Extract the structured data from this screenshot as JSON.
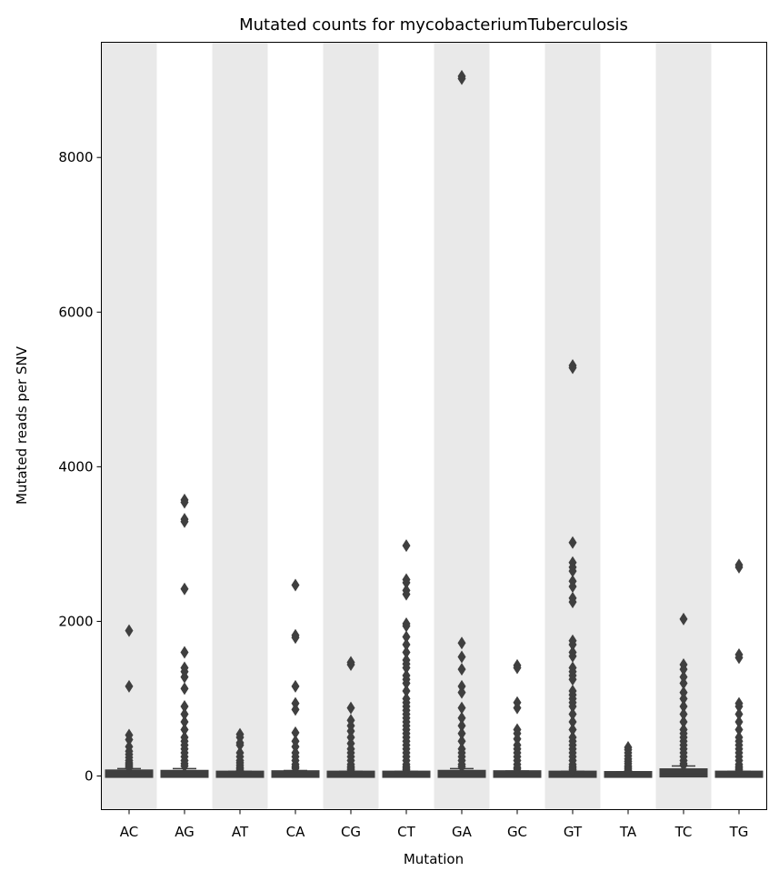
{
  "chart_data": {
    "type": "box",
    "title": "Mutated counts for mycobacteriumTuberculosis",
    "xlabel": "Mutation",
    "ylabel": "Mutated reads per SNV",
    "ylim": [
      -435,
      9490
    ],
    "yticks": [
      0,
      2000,
      4000,
      6000,
      8000
    ],
    "shaded_bands": "alternating grey background on every other category",
    "colors": {
      "box": "#3f3f3f",
      "band": "#e9e9e9"
    },
    "categories": [
      "AC",
      "AG",
      "AT",
      "CA",
      "CG",
      "CT",
      "GA",
      "GC",
      "GT",
      "TA",
      "TC",
      "TG"
    ],
    "series": [
      {
        "name": "AC",
        "q1": 5,
        "median": 20,
        "q3": 55,
        "whisker_low": 1,
        "whisker_high": 95,
        "outliers": [
          1880,
          1160,
          530,
          470,
          380,
          320,
          280,
          240,
          200,
          170,
          150,
          130,
          110
        ]
      },
      {
        "name": "AG",
        "q1": 5,
        "median": 20,
        "q3": 50,
        "whisker_low": 1,
        "whisker_high": 95,
        "outliers": [
          3570,
          3540,
          3320,
          3290,
          2420,
          1600,
          1400,
          1350,
          1280,
          1130,
          900,
          800,
          700,
          600,
          500,
          450,
          400,
          350,
          300,
          250,
          200,
          160,
          130
        ]
      },
      {
        "name": "AT",
        "q1": 5,
        "median": 15,
        "q3": 40,
        "whisker_low": 1,
        "whisker_high": 60,
        "outliers": [
          540,
          500,
          430,
          400,
          300,
          250,
          200,
          170,
          140,
          110,
          90,
          70
        ]
      },
      {
        "name": "CA",
        "q1": 5,
        "median": 15,
        "q3": 45,
        "whisker_low": 1,
        "whisker_high": 70,
        "outliers": [
          2470,
          1820,
          1790,
          1160,
          940,
          860,
          560,
          450,
          380,
          300,
          250,
          200,
          150,
          120,
          100
        ]
      },
      {
        "name": "CG",
        "q1": 5,
        "median": 15,
        "q3": 40,
        "whisker_low": 1,
        "whisker_high": 60,
        "outliers": [
          1470,
          1440,
          880,
          720,
          650,
          580,
          500,
          420,
          350,
          300,
          250,
          200,
          150,
          120,
          100,
          80
        ]
      },
      {
        "name": "CT",
        "q1": 5,
        "median": 15,
        "q3": 40,
        "whisker_low": 1,
        "whisker_high": 60,
        "outliers": [
          2980,
          2540,
          2500,
          2400,
          2350,
          1970,
          1940,
          1800,
          1700,
          1600,
          1500,
          1450,
          1400,
          1300,
          1250,
          1200,
          1100,
          1000,
          950,
          900,
          850,
          800,
          750,
          700,
          650,
          600,
          550,
          500,
          450,
          400,
          350,
          300,
          250,
          200,
          150,
          120,
          100,
          80
        ]
      },
      {
        "name": "GA",
        "q1": 5,
        "median": 20,
        "q3": 50,
        "whisker_low": 1,
        "whisker_high": 95,
        "outliers": [
          9050,
          9020,
          1720,
          1540,
          1380,
          1160,
          1080,
          880,
          750,
          650,
          550,
          450,
          350,
          300,
          250,
          200,
          150,
          120
        ]
      },
      {
        "name": "GC",
        "q1": 5,
        "median": 15,
        "q3": 45,
        "whisker_low": 1,
        "whisker_high": 65,
        "outliers": [
          1430,
          1400,
          950,
          880,
          600,
          550,
          480,
          400,
          350,
          300,
          250,
          200,
          150,
          110,
          90
        ]
      },
      {
        "name": "GT",
        "q1": 5,
        "median": 15,
        "q3": 40,
        "whisker_low": 1,
        "whisker_high": 60,
        "outliers": [
          5310,
          5280,
          3020,
          2760,
          2700,
          2650,
          2520,
          2450,
          2300,
          2250,
          1750,
          1700,
          1600,
          1550,
          1400,
          1350,
          1300,
          1250,
          1100,
          1050,
          1000,
          950,
          900,
          800,
          700,
          600,
          500,
          450,
          400,
          350,
          300,
          250,
          200,
          150,
          120,
          100,
          80
        ]
      },
      {
        "name": "TA",
        "q1": 5,
        "median": 15,
        "q3": 35,
        "whisker_low": 1,
        "whisker_high": 55,
        "outliers": [
          370,
          340,
          300,
          260,
          220,
          190,
          160,
          130,
          110,
          90,
          70
        ]
      },
      {
        "name": "TC",
        "q1": 10,
        "median": 30,
        "q3": 70,
        "whisker_low": 1,
        "whisker_high": 130,
        "outliers": [
          2030,
          1440,
          1380,
          1280,
          1200,
          1080,
          1000,
          900,
          800,
          700,
          600,
          550,
          500,
          450,
          400,
          350,
          300,
          250,
          200,
          160,
          140
        ]
      },
      {
        "name": "TG",
        "q1": 5,
        "median": 15,
        "q3": 40,
        "whisker_low": 1,
        "whisker_high": 60,
        "outliers": [
          2730,
          2700,
          1570,
          1530,
          940,
          900,
          800,
          700,
          600,
          500,
          450,
          400,
          350,
          300,
          250,
          200,
          150,
          120,
          100,
          80
        ]
      }
    ]
  }
}
